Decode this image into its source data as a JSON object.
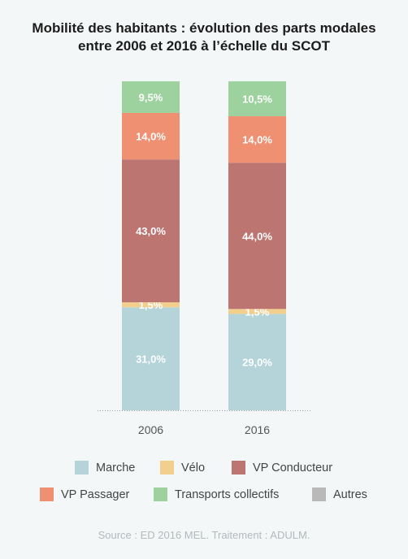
{
  "title_line1": "Mobilité des habitants : évolution des parts modales",
  "title_line2": "entre 2006 et 2016 à l’échelle du SCOT",
  "source": "Source : ED 2016 MEL. Traitement : ADULM.",
  "chart_data": {
    "type": "bar",
    "stacked": true,
    "title": "Mobilité des habitants : évolution des parts modales entre 2006 et 2016 à l’échelle du SCOT",
    "categories": [
      "2006",
      "2016"
    ],
    "ylim": [
      0,
      100
    ],
    "grid": false,
    "legend_position": "bottom",
    "series": [
      {
        "name": "Marche",
        "color": "#b5d4d9",
        "values": [
          31.0,
          29.0
        ],
        "labels": [
          "31,0%",
          "29,0%"
        ]
      },
      {
        "name": "Vélo",
        "color": "#f2cf8d",
        "values": [
          1.5,
          1.5
        ],
        "labels": [
          "1,5%",
          "1,5%"
        ]
      },
      {
        "name": "VP Conducteur",
        "color": "#bd7571",
        "values": [
          43.0,
          44.0
        ],
        "labels": [
          "43,0%",
          "44,0%"
        ]
      },
      {
        "name": "VP Passager",
        "color": "#ee9071",
        "values": [
          14.0,
          14.0
        ],
        "labels": [
          "14,0%",
          "14,0%"
        ]
      },
      {
        "name": "Transports collectifs",
        "color": "#9dd29f",
        "values": [
          9.5,
          10.5
        ],
        "labels": [
          "9,5%",
          "10,5%"
        ]
      },
      {
        "name": "Autres",
        "color": "#b9b9b9",
        "values": [
          0,
          0
        ],
        "labels": [
          "",
          ""
        ]
      }
    ]
  }
}
